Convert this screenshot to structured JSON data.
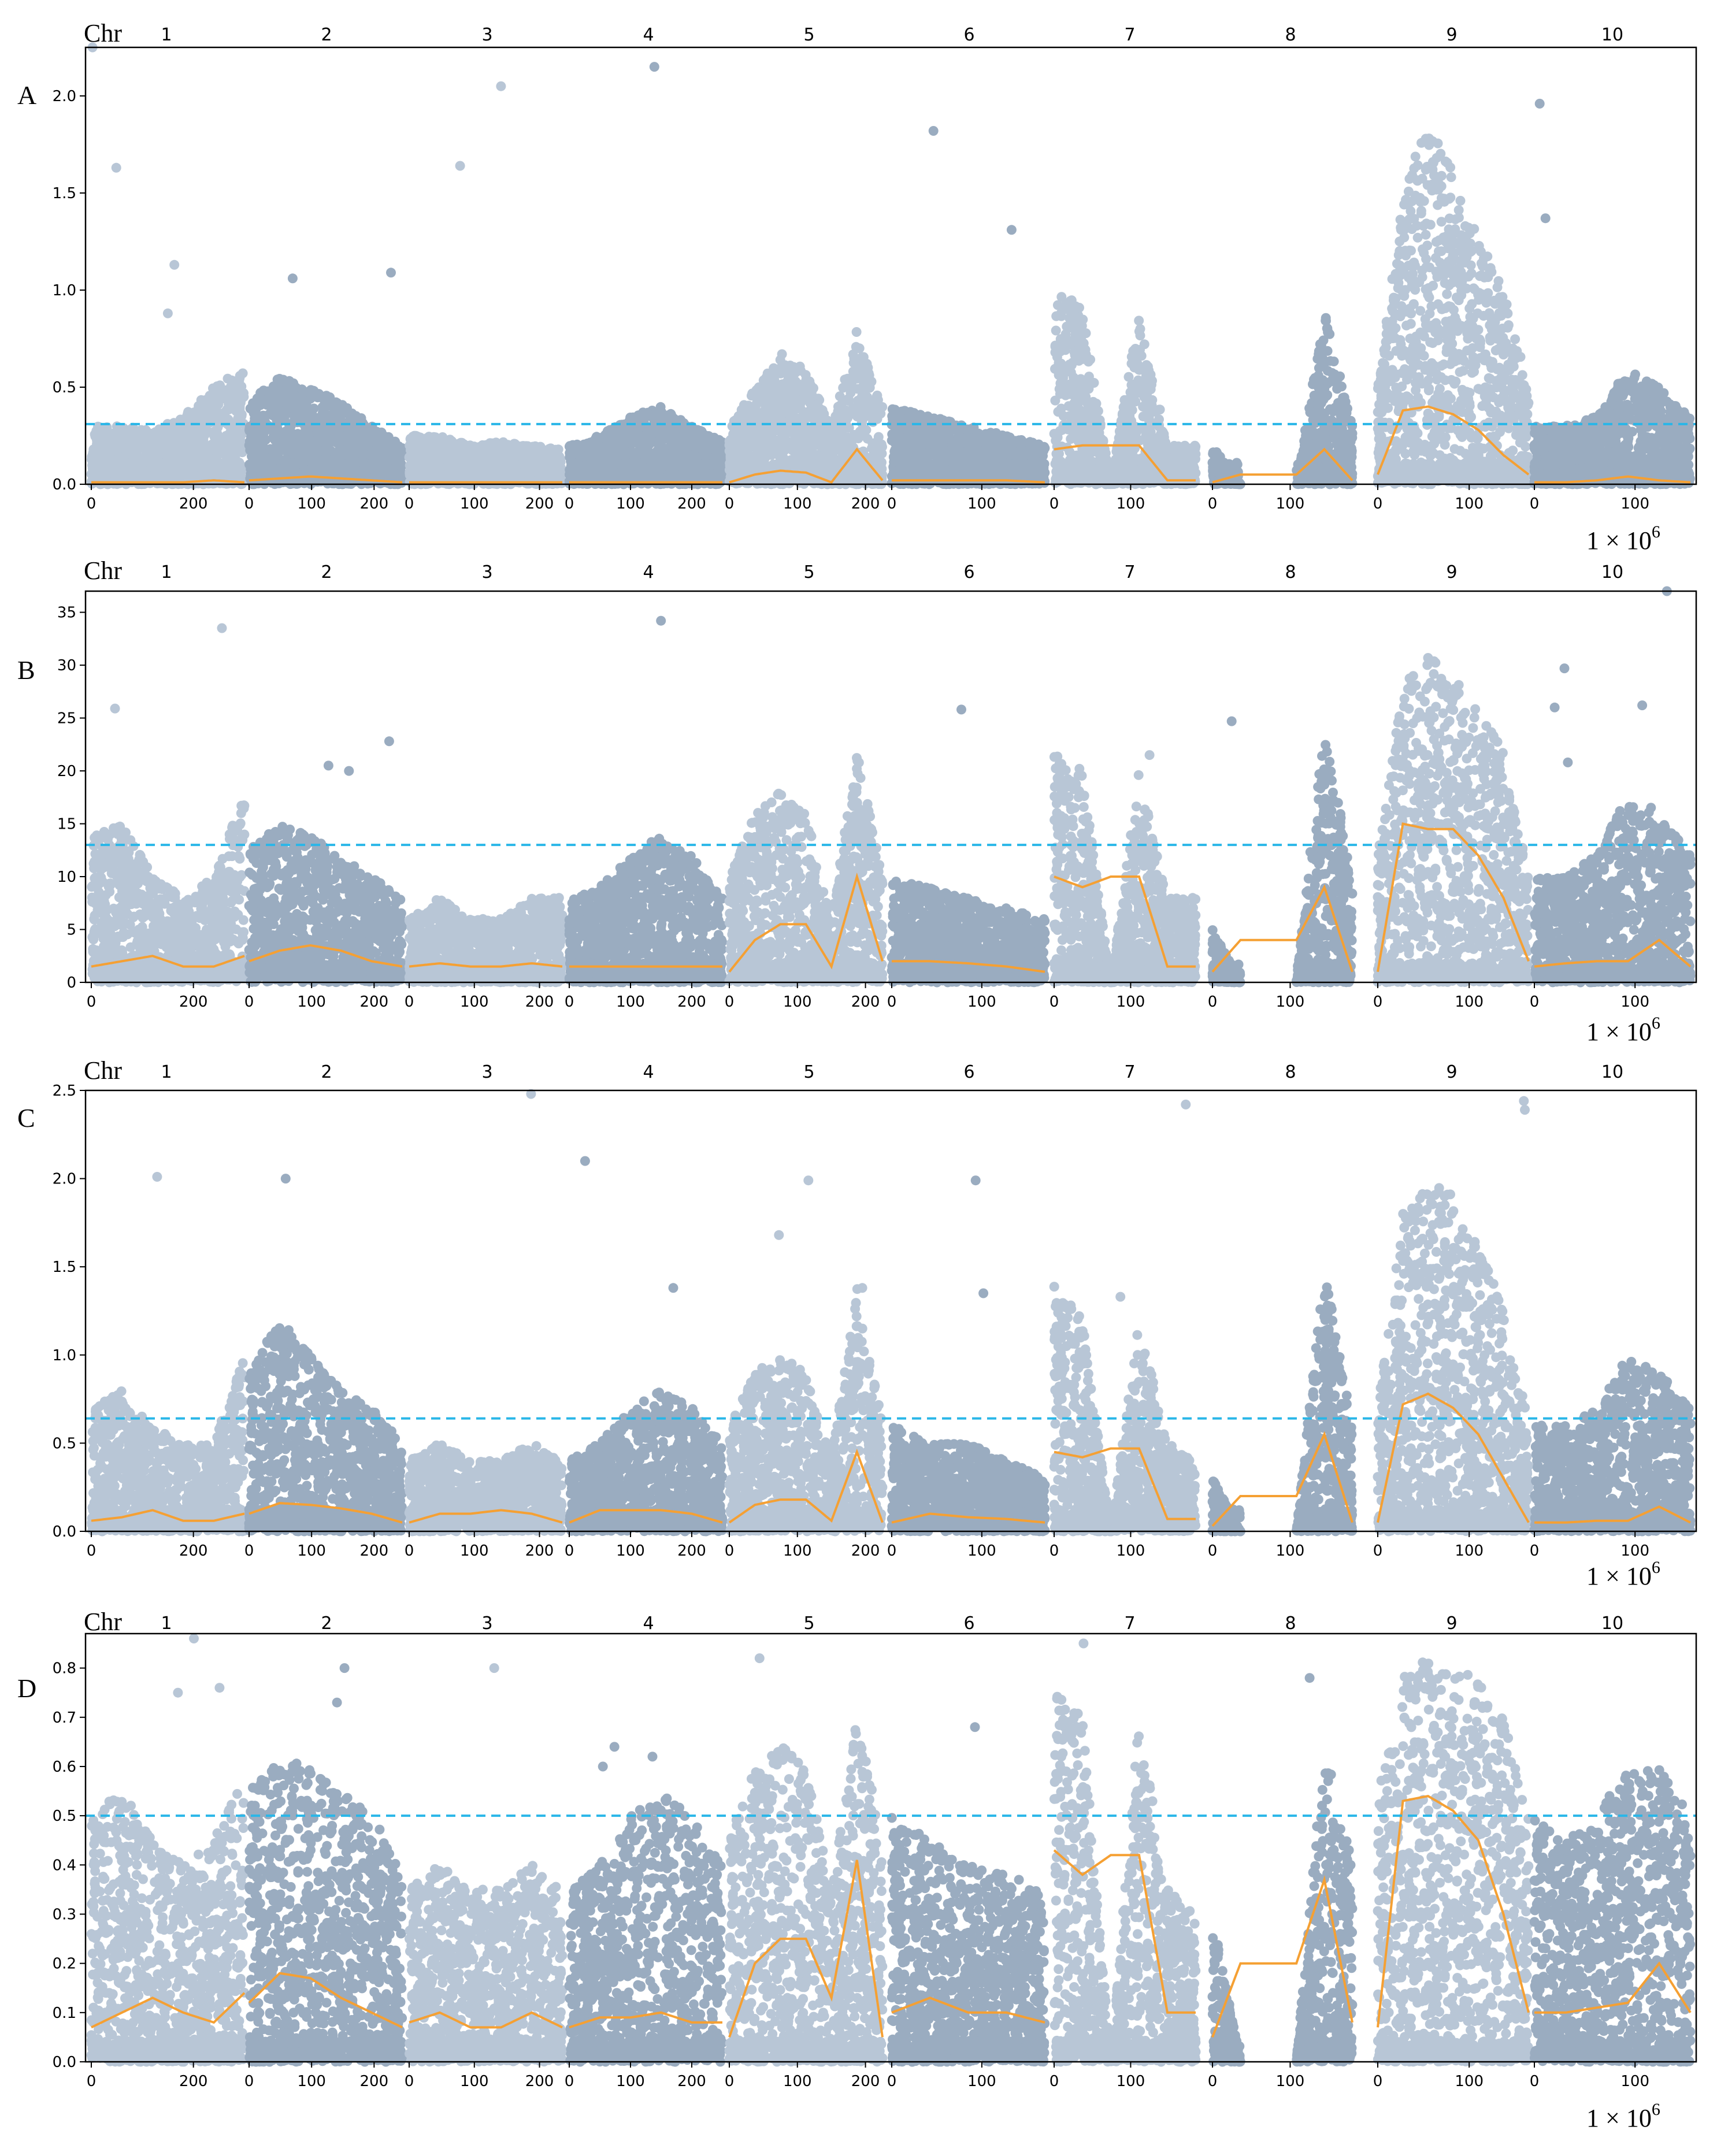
{
  "figure": {
    "chr_prefix": "Chr",
    "x_unit_label": "1 × 10",
    "x_unit_exponent": "6",
    "colors": {
      "points_light": "#b8c6d6",
      "points_dark": "#9aacc0",
      "smooth_line": "#f5a033",
      "threshold_line": "#29b6e8",
      "axis": "#000000"
    }
  },
  "chromosomes": [
    {
      "name": "1",
      "ticks": [
        {
          "pos": 0,
          "label": "0"
        },
        {
          "pos": 200,
          "label": "200"
        }
      ]
    },
    {
      "name": "2",
      "ticks": [
        {
          "pos": 0,
          "label": "0"
        },
        {
          "pos": 100,
          "label": "100"
        },
        {
          "pos": 200,
          "label": "200"
        }
      ]
    },
    {
      "name": "3",
      "ticks": [
        {
          "pos": 0,
          "label": "0"
        },
        {
          "pos": 100,
          "label": "100"
        },
        {
          "pos": 200,
          "label": "200"
        }
      ]
    },
    {
      "name": "4",
      "ticks": [
        {
          "pos": 0,
          "label": "0"
        },
        {
          "pos": 100,
          "label": "100"
        },
        {
          "pos": 200,
          "label": "200"
        }
      ]
    },
    {
      "name": "5",
      "ticks": [
        {
          "pos": 0,
          "label": "0"
        },
        {
          "pos": 100,
          "label": "100"
        },
        {
          "pos": 200,
          "label": "200"
        }
      ]
    },
    {
      "name": "6",
      "ticks": [
        {
          "pos": 0,
          "label": "0"
        },
        {
          "pos": 100,
          "label": "100"
        }
      ]
    },
    {
      "name": "7",
      "ticks": [
        {
          "pos": 0,
          "label": "0"
        },
        {
          "pos": 100,
          "label": "100"
        }
      ]
    },
    {
      "name": "8",
      "ticks": [
        {
          "pos": 0,
          "label": "0"
        },
        {
          "pos": 100,
          "label": "100"
        }
      ]
    },
    {
      "name": "9",
      "ticks": [
        {
          "pos": 0,
          "label": "0"
        },
        {
          "pos": 100,
          "label": "100"
        }
      ]
    },
    {
      "name": "10",
      "ticks": [
        {
          "pos": 0,
          "label": "0"
        },
        {
          "pos": 100,
          "label": "100"
        }
      ]
    }
  ],
  "chart_data": [
    {
      "type": "scatter",
      "panel_label": "A",
      "ylim": [
        0,
        2.25
      ],
      "yticks": [
        "0.0",
        "0.5",
        "1.0",
        "1.5",
        "2.0"
      ],
      "ytick_values": [
        0,
        0.5,
        1.0,
        1.5,
        2.0
      ],
      "threshold": 0.31,
      "smooth_line": [
        [
          0.01,
          0.01,
          0.01,
          0.01,
          0.02,
          0.01
        ],
        [
          0.02,
          0.03,
          0.04,
          0.03,
          0.02,
          0.01
        ],
        [
          0.01,
          0.01,
          0.01,
          0.01,
          0.01,
          0.01
        ],
        [
          0.01,
          0.01,
          0.01,
          0.01,
          0.01,
          0.01
        ],
        [
          0.01,
          0.05,
          0.07,
          0.06,
          0.01,
          0.18,
          0.02
        ],
        [
          0.02,
          0.02,
          0.02,
          0.02,
          0.01
        ],
        [
          0.18,
          0.2,
          0.2,
          0.2,
          0.02,
          0.02
        ],
        [
          0.01,
          0.05,
          0.05,
          0.05,
          0.18,
          0.02
        ],
        [
          0.05,
          0.38,
          0.4,
          0.36,
          0.28,
          0.15,
          0.05
        ],
        [
          0.01,
          0.01,
          0.02,
          0.04,
          0.02,
          0.01
        ]
      ],
      "band_max": [
        [
          0.3,
          0.3,
          0.28,
          0.35,
          0.5,
          0.6
        ],
        [
          0.45,
          0.55,
          0.5,
          0.42,
          0.3,
          0.2
        ],
        [
          0.25,
          0.25,
          0.2,
          0.22,
          0.2,
          0.18
        ],
        [
          0.2,
          0.25,
          0.35,
          0.4,
          0.3,
          0.22
        ],
        [
          0.3,
          0.5,
          0.65,
          0.6,
          0.3,
          0.8,
          0.4
        ],
        [
          0.4,
          0.35,
          0.3,
          0.25,
          0.2
        ],
        [
          1.1,
          0.9,
          0.0,
          0.9,
          0.2,
          0.2
        ],
        [
          0.2,
          0.0,
          0.0,
          0.0,
          0.9,
          0.3
        ],
        [
          0.5,
          1.5,
          1.9,
          1.6,
          1.3,
          1.0,
          0.5
        ],
        [
          0.3,
          0.3,
          0.35,
          0.6,
          0.5,
          0.35
        ]
      ],
      "outliers": [
        0.55,
        1.13,
        0.88,
        0.67,
        1.37,
        1.31,
        1.47,
        2.15,
        1.96,
        1.64,
        1.82,
        2.25,
        2.05,
        1.63,
        1.06,
        1.09
      ]
    },
    {
      "type": "scatter",
      "panel_label": "B",
      "ylim": [
        0,
        37
      ],
      "yticks": [
        "0",
        "5",
        "10",
        "15",
        "20",
        "25",
        "30",
        "35"
      ],
      "ytick_values": [
        0,
        5,
        10,
        15,
        20,
        25,
        30,
        35
      ],
      "threshold": 13,
      "smooth_line": [
        [
          1.5,
          2.0,
          2.5,
          1.5,
          1.5,
          2.5
        ],
        [
          2.0,
          3.0,
          3.5,
          3.0,
          2.0,
          1.5
        ],
        [
          1.5,
          1.8,
          1.5,
          1.5,
          1.8,
          1.5
        ],
        [
          1.5,
          1.5,
          1.5,
          1.5,
          1.5,
          1.5
        ],
        [
          1.0,
          4.0,
          5.5,
          5.5,
          1.5,
          10.0,
          2.0
        ],
        [
          2.0,
          2.0,
          1.8,
          1.5,
          1.0
        ],
        [
          10.0,
          9.0,
          10.0,
          10.0,
          1.5,
          1.5
        ],
        [
          1.0,
          4.0,
          4.0,
          4.0,
          9.0,
          1.0
        ],
        [
          1.0,
          15.0,
          14.5,
          14.5,
          12.0,
          8.0,
          2.0
        ],
        [
          1.5,
          1.8,
          2.0,
          2.0,
          4.0,
          1.5
        ]
      ],
      "band_max": [
        [
          14,
          15,
          10,
          8,
          10,
          18
        ],
        [
          13,
          15,
          14,
          12,
          10,
          8
        ],
        [
          6,
          8,
          6,
          6,
          8,
          8
        ],
        [
          8,
          9,
          12,
          14,
          12,
          8
        ],
        [
          10,
          16,
          18,
          16,
          6,
          22,
          10
        ],
        [
          10,
          9,
          8,
          7,
          6
        ],
        [
          22,
          20,
          0,
          20,
          8,
          8
        ],
        [
          5,
          0,
          0,
          0,
          25,
          10
        ],
        [
          12,
          28,
          31,
          29,
          26,
          22,
          10
        ],
        [
          10,
          10,
          12,
          18,
          16,
          12
        ]
      ],
      "outliers": [
        20.8,
        26.2,
        21.5,
        20.5,
        25.8,
        22.8,
        29.7,
        25.9,
        24.7,
        34.2,
        37.0,
        33.5,
        26.0,
        20.0,
        19.5
      ]
    },
    {
      "type": "scatter",
      "panel_label": "C",
      "ylim": [
        0,
        2.5
      ],
      "yticks": [
        "0.0",
        "0.5",
        "1.0",
        "1.5",
        "2.0",
        "2.5"
      ],
      "ytick_values": [
        0,
        0.5,
        1.0,
        1.5,
        2.0,
        2.5
      ],
      "threshold": 0.64,
      "smooth_line": [
        [
          0.06,
          0.08,
          0.12,
          0.06,
          0.06,
          0.1
        ],
        [
          0.1,
          0.16,
          0.15,
          0.13,
          0.1,
          0.05
        ],
        [
          0.05,
          0.1,
          0.1,
          0.12,
          0.1,
          0.05
        ],
        [
          0.05,
          0.12,
          0.12,
          0.12,
          0.1,
          0.05
        ],
        [
          0.05,
          0.15,
          0.18,
          0.18,
          0.06,
          0.45,
          0.05
        ],
        [
          0.05,
          0.1,
          0.08,
          0.07,
          0.05
        ],
        [
          0.45,
          0.42,
          0.47,
          0.47,
          0.07,
          0.07
        ],
        [
          0.03,
          0.2,
          0.2,
          0.2,
          0.55,
          0.05
        ],
        [
          0.05,
          0.72,
          0.78,
          0.7,
          0.55,
          0.3,
          0.05
        ],
        [
          0.05,
          0.05,
          0.06,
          0.06,
          0.14,
          0.05
        ]
      ],
      "band_max": [
        [
          0.7,
          0.8,
          0.6,
          0.5,
          0.5,
          1.0
        ],
        [
          0.9,
          1.2,
          1.0,
          0.8,
          0.7,
          0.5
        ],
        [
          0.4,
          0.5,
          0.4,
          0.4,
          0.5,
          0.4
        ],
        [
          0.4,
          0.5,
          0.7,
          0.8,
          0.7,
          0.5
        ],
        [
          0.6,
          0.9,
          1.0,
          0.9,
          0.4,
          1.4,
          0.6
        ],
        [
          0.6,
          0.5,
          0.5,
          0.4,
          0.3
        ],
        [
          1.4,
          1.2,
          0.0,
          1.2,
          0.5,
          0.4
        ],
        [
          0.3,
          0.0,
          0.0,
          0.0,
          1.5,
          0.6
        ],
        [
          0.7,
          1.8,
          2.0,
          1.9,
          1.6,
          1.3,
          0.6
        ],
        [
          0.6,
          0.6,
          0.7,
          1.0,
          0.9,
          0.7
        ]
      ],
      "outliers": [
        1.35,
        1.99,
        1.68,
        1.38,
        1.38,
        1.55,
        1.99,
        2.42,
        2.39,
        2.01,
        2.0,
        2.48,
        2.1,
        2.44,
        1.33
      ]
    },
    {
      "type": "scatter",
      "panel_label": "D",
      "ylim": [
        0,
        0.87
      ],
      "yticks": [
        "0.0",
        "0.1",
        "0.2",
        "0.3",
        "0.4",
        "0.5",
        "0.6",
        "0.7",
        "0.8"
      ],
      "ytick_values": [
        0,
        0.1,
        0.2,
        0.3,
        0.4,
        0.5,
        0.6,
        0.7,
        0.8
      ],
      "threshold": 0.5,
      "smooth_line": [
        [
          0.07,
          0.1,
          0.13,
          0.1,
          0.08,
          0.14
        ],
        [
          0.12,
          0.18,
          0.17,
          0.13,
          0.1,
          0.07
        ],
        [
          0.08,
          0.1,
          0.07,
          0.07,
          0.1,
          0.07
        ],
        [
          0.07,
          0.09,
          0.09,
          0.1,
          0.08,
          0.08
        ],
        [
          0.05,
          0.2,
          0.25,
          0.25,
          0.13,
          0.41,
          0.05
        ],
        [
          0.1,
          0.13,
          0.1,
          0.1,
          0.08
        ],
        [
          0.43,
          0.38,
          0.42,
          0.42,
          0.1,
          0.1
        ],
        [
          0.05,
          0.2,
          0.2,
          0.2,
          0.37,
          0.08
        ],
        [
          0.07,
          0.53,
          0.54,
          0.51,
          0.45,
          0.3,
          0.1
        ],
        [
          0.1,
          0.1,
          0.11,
          0.12,
          0.2,
          0.1
        ]
      ],
      "band_max": [
        [
          0.5,
          0.55,
          0.45,
          0.4,
          0.45,
          0.6
        ],
        [
          0.55,
          0.62,
          0.6,
          0.55,
          0.5,
          0.4
        ],
        [
          0.35,
          0.4,
          0.35,
          0.35,
          0.4,
          0.35
        ],
        [
          0.35,
          0.4,
          0.5,
          0.55,
          0.5,
          0.4
        ],
        [
          0.45,
          0.6,
          0.65,
          0.6,
          0.35,
          0.7,
          0.45
        ],
        [
          0.5,
          0.45,
          0.4,
          0.38,
          0.35
        ],
        [
          0.75,
          0.7,
          0.0,
          0.7,
          0.35,
          0.3
        ],
        [
          0.3,
          0.0,
          0.0,
          0.0,
          0.65,
          0.4
        ],
        [
          0.55,
          0.78,
          0.82,
          0.8,
          0.78,
          0.7,
          0.5
        ],
        [
          0.5,
          0.45,
          0.5,
          0.6,
          0.6,
          0.5
        ]
      ],
      "outliers": [
        0.66,
        0.73,
        0.68,
        0.64,
        0.76,
        0.75,
        0.78,
        0.85,
        0.82,
        0.86,
        0.8,
        0.8,
        0.62,
        0.6
      ]
    }
  ]
}
